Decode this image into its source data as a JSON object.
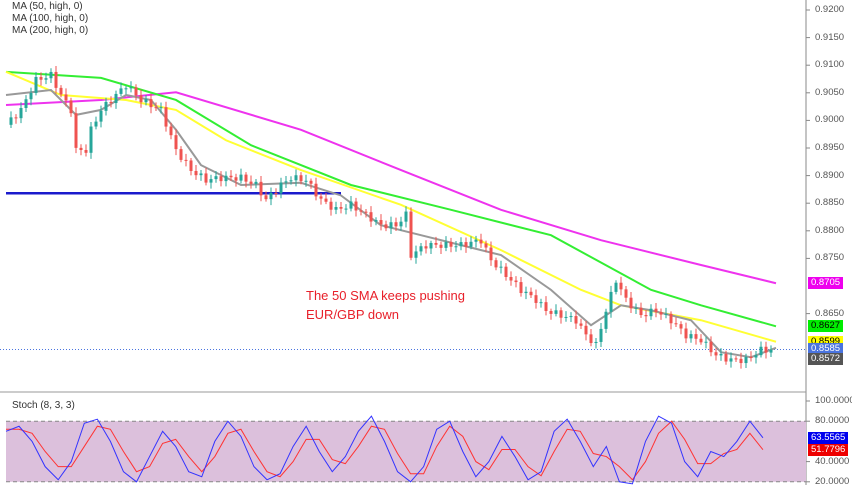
{
  "legend": [
    "MA (50, high, 0)",
    "MA (100, high, 0)",
    "MA (200, high, 0)"
  ],
  "annotation": [
    "The 50 SMA keeps pushing",
    "EUR/GBP down"
  ],
  "stoch_label": "Stoch (8, 3, 3)",
  "colors": {
    "up": "#26a69a",
    "down": "#ef5350",
    "ma20": "#999999",
    "ma50": "#ffff33",
    "ma100": "#33ee33",
    "ma200": "#ee33ee",
    "support": "#1a1acc",
    "stoch_k": "#3333ff",
    "stoch_d": "#ff3333",
    "stoch_band": "#dcc0dc"
  },
  "chart_data": [
    {
      "type": "candlestick",
      "ylim": [
        0.854,
        0.922
      ],
      "y_ticks": [
        "0.9200",
        "0.9150",
        "0.9100",
        "0.9050",
        "0.9000",
        "0.8950",
        "0.8900",
        "0.8850",
        "0.8800",
        "0.8750",
        "0.8650"
      ],
      "price_close": {
        "bar": [
          0,
          3,
          6,
          9,
          11,
          13,
          14,
          16,
          17,
          19,
          21,
          24,
          27,
          31,
          34,
          37,
          40,
          43,
          47,
          50,
          52,
          55,
          57,
          60,
          63,
          66,
          69,
          72,
          75,
          78,
          80,
          81,
          84,
          87,
          91,
          95,
          97,
          100,
          103,
          106,
          108,
          111,
          114,
          116,
          118,
          120,
          122,
          124,
          127,
          130,
          133,
          136,
          139,
          142,
          145,
          148,
          151,
          153
        ],
        "close": [
          0.8992,
          0.9019,
          0.9073,
          0.9082,
          0.9046,
          0.9019,
          0.8946,
          0.8946,
          0.8983,
          0.9019,
          0.9037,
          0.9064,
          0.9037,
          0.9019,
          0.8946,
          0.891,
          0.8892,
          0.8896,
          0.8896,
          0.8883,
          0.8856,
          0.8883,
          0.8896,
          0.8892,
          0.8856,
          0.8838,
          0.8847,
          0.8829,
          0.881,
          0.881,
          0.8829,
          0.8756,
          0.8774,
          0.8774,
          0.8774,
          0.8783,
          0.8747,
          0.872,
          0.8693,
          0.8675,
          0.8656,
          0.8647,
          0.8638,
          0.8611,
          0.8593,
          0.8656,
          0.8711,
          0.8675,
          0.8647,
          0.8656,
          0.8638,
          0.8611,
          0.8602,
          0.8575,
          0.8566,
          0.8566,
          0.8584,
          0.8584
        ]
      },
      "ma20": {
        "bar": [
          0,
          9,
          14,
          19,
          24,
          29,
          34,
          39,
          47,
          59,
          67,
          75,
          83,
          91,
          99,
          109,
          117,
          123,
          129,
          137,
          143,
          149,
          154
        ],
        "value": [
          0.9046,
          0.9055,
          0.901,
          0.9019,
          0.9046,
          0.9037,
          0.8983,
          0.8919,
          0.8883,
          0.8887,
          0.8864,
          0.881,
          0.8792,
          0.8774,
          0.8756,
          0.8693,
          0.8629,
          0.8665,
          0.8656,
          0.8638,
          0.858,
          0.8571,
          0.8588
        ]
      },
      "ma50": {
        "bar": [
          0,
          11,
          24,
          34,
          44,
          59,
          79,
          99,
          115,
          123,
          139,
          154
        ],
        "value": [
          0.9088,
          0.9046,
          0.9037,
          0.9019,
          0.8964,
          0.891,
          0.8847,
          0.8765,
          0.8693,
          0.8665,
          0.8638,
          0.8599
        ]
      },
      "ma100": {
        "bar": [
          0,
          19,
          34,
          49,
          69,
          89,
          109,
          129,
          139,
          154
        ],
        "value": [
          0.9088,
          0.9077,
          0.9037,
          0.8955,
          0.8883,
          0.8838,
          0.8792,
          0.8693,
          0.8665,
          0.8627
        ]
      },
      "ma200": {
        "bar": [
          0,
          19,
          34,
          59,
          79,
          99,
          119,
          139,
          154
        ],
        "value": [
          0.9028,
          0.9037,
          0.9051,
          0.8983,
          0.891,
          0.8838,
          0.8783,
          0.8738,
          0.8705
        ]
      },
      "support_level": {
        "value": 0.8868,
        "from_bar": 0,
        "to_bar": 67
      },
      "last_price": 0.8585,
      "price_tags": [
        {
          "label": "0.8705",
          "color": "#ee00ee",
          "text": "#ffffff",
          "value": 0.8705
        },
        {
          "label": "0.8627",
          "color": "#00ee00",
          "text": "#000000",
          "value": 0.8627
        },
        {
          "label": "0.8599",
          "color": "#ffff00",
          "text": "#000000",
          "value": 0.8599
        },
        {
          "label": "0.8585",
          "color": "#4a74e0",
          "text": "#ffffff",
          "value": 0.8585
        },
        {
          "label": "0.8572",
          "color": "#555555",
          "text": "#ffffff",
          "value": 0.8572
        }
      ]
    },
    {
      "type": "line",
      "title": "Stoch (8, 3, 3)",
      "ylim": [
        20,
        100
      ],
      "y_ticks": [
        "100.0000",
        "80.0000",
        "40.0000",
        "20.0000"
      ],
      "bar_step": 3,
      "k": [
        70,
        75,
        60,
        35,
        22,
        40,
        78,
        82,
        60,
        30,
        20,
        45,
        70,
        55,
        30,
        25,
        60,
        80,
        65,
        35,
        22,
        28,
        55,
        75,
        50,
        30,
        45,
        70,
        85,
        60,
        30,
        20,
        35,
        72,
        80,
        50,
        25,
        40,
        65,
        45,
        22,
        30,
        70,
        82,
        60,
        35,
        55,
        20,
        18,
        60,
        85,
        78,
        40,
        25,
        50,
        45,
        60,
        80,
        63.56
      ],
      "d": [
        72,
        72,
        68,
        50,
        35,
        35,
        55,
        75,
        72,
        50,
        30,
        35,
        58,
        62,
        45,
        30,
        45,
        68,
        72,
        50,
        30,
        25,
        40,
        62,
        62,
        42,
        38,
        55,
        75,
        72,
        48,
        28,
        28,
        55,
        75,
        65,
        40,
        32,
        52,
        52,
        35,
        26,
        50,
        72,
        70,
        48,
        45,
        35,
        22,
        40,
        68,
        80,
        62,
        38,
        38,
        48,
        52,
        68,
        51.78
      ],
      "price_tags": [
        {
          "label": "63.5565",
          "color": "#0000ee",
          "text": "#ffffff",
          "value": 63.5565
        },
        {
          "label": "51.7796",
          "color": "#ee0000",
          "text": "#ffffff",
          "value": 51.7796
        }
      ]
    }
  ]
}
